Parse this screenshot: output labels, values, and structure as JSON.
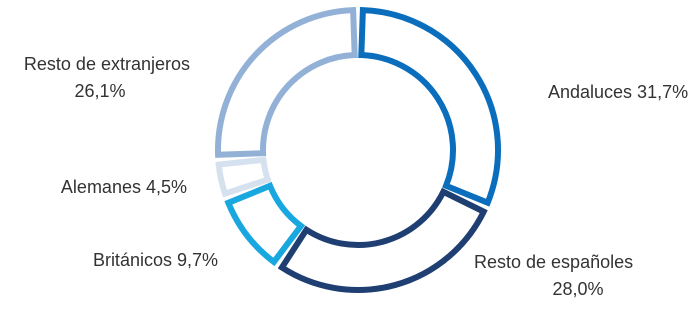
{
  "chart_data": {
    "type": "pie",
    "style": "donut",
    "colors_note": "segment outline colors",
    "series": [
      {
        "name": "",
        "slices": [
          {
            "label": "Andaluces",
            "value": 31.7,
            "value_label": "31,7%",
            "color": "#0A6EBD"
          },
          {
            "label": "Resto de españoles",
            "value": 28.0,
            "value_label": "28,0%",
            "color": "#1F3F73"
          },
          {
            "label": "Británicos",
            "value": 9.7,
            "value_label": "9,7%",
            "color": "#19A7E0"
          },
          {
            "label": "Alemanes",
            "value": 4.5,
            "value_label": "4,5%",
            "color": "#D6E1EF"
          },
          {
            "label": "Resto de extranjeros",
            "value": 26.1,
            "value_label": "26,1%",
            "color": "#93B1D7"
          }
        ]
      }
    ],
    "title": "",
    "legend": "none"
  }
}
